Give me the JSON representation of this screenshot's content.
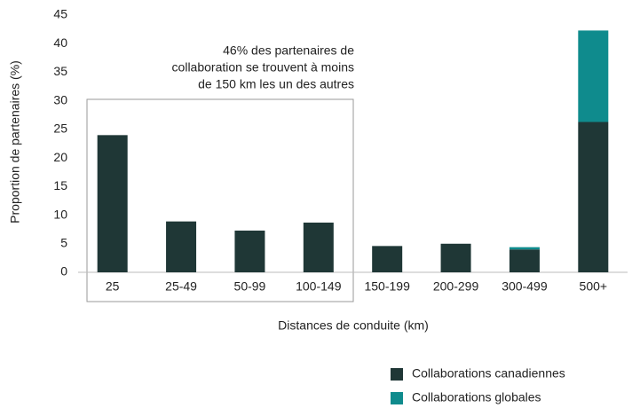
{
  "chart_data": {
    "type": "stacked_bar",
    "categories": [
      "25",
      "25-49",
      "50-99",
      "100-149",
      "150-199",
      "200-299",
      "300-499",
      "500+"
    ],
    "series": [
      {
        "name": "Collaborations canadiennes",
        "color": "#1f3736",
        "values": [
          24,
          8.9,
          7.3,
          8.7,
          4.6,
          5.0,
          4.0,
          26.3
        ]
      },
      {
        "name": "Collaborations globales",
        "color": "#0f8b8d",
        "values": [
          0,
          0,
          0,
          0,
          0,
          0,
          0.4,
          16
        ]
      }
    ],
    "ylim": [
      0,
      45
    ],
    "yticks": [
      0,
      5,
      10,
      15,
      20,
      25,
      30,
      35,
      40,
      45
    ],
    "y_label": "Proportion de partenaires  (%)",
    "x_label": "Distances de conduite (km)",
    "annotation": [
      "46% des partenaires de",
      "collaboration se trouvent à  moins",
      "de 150 km les un des autres"
    ],
    "grid": false
  }
}
